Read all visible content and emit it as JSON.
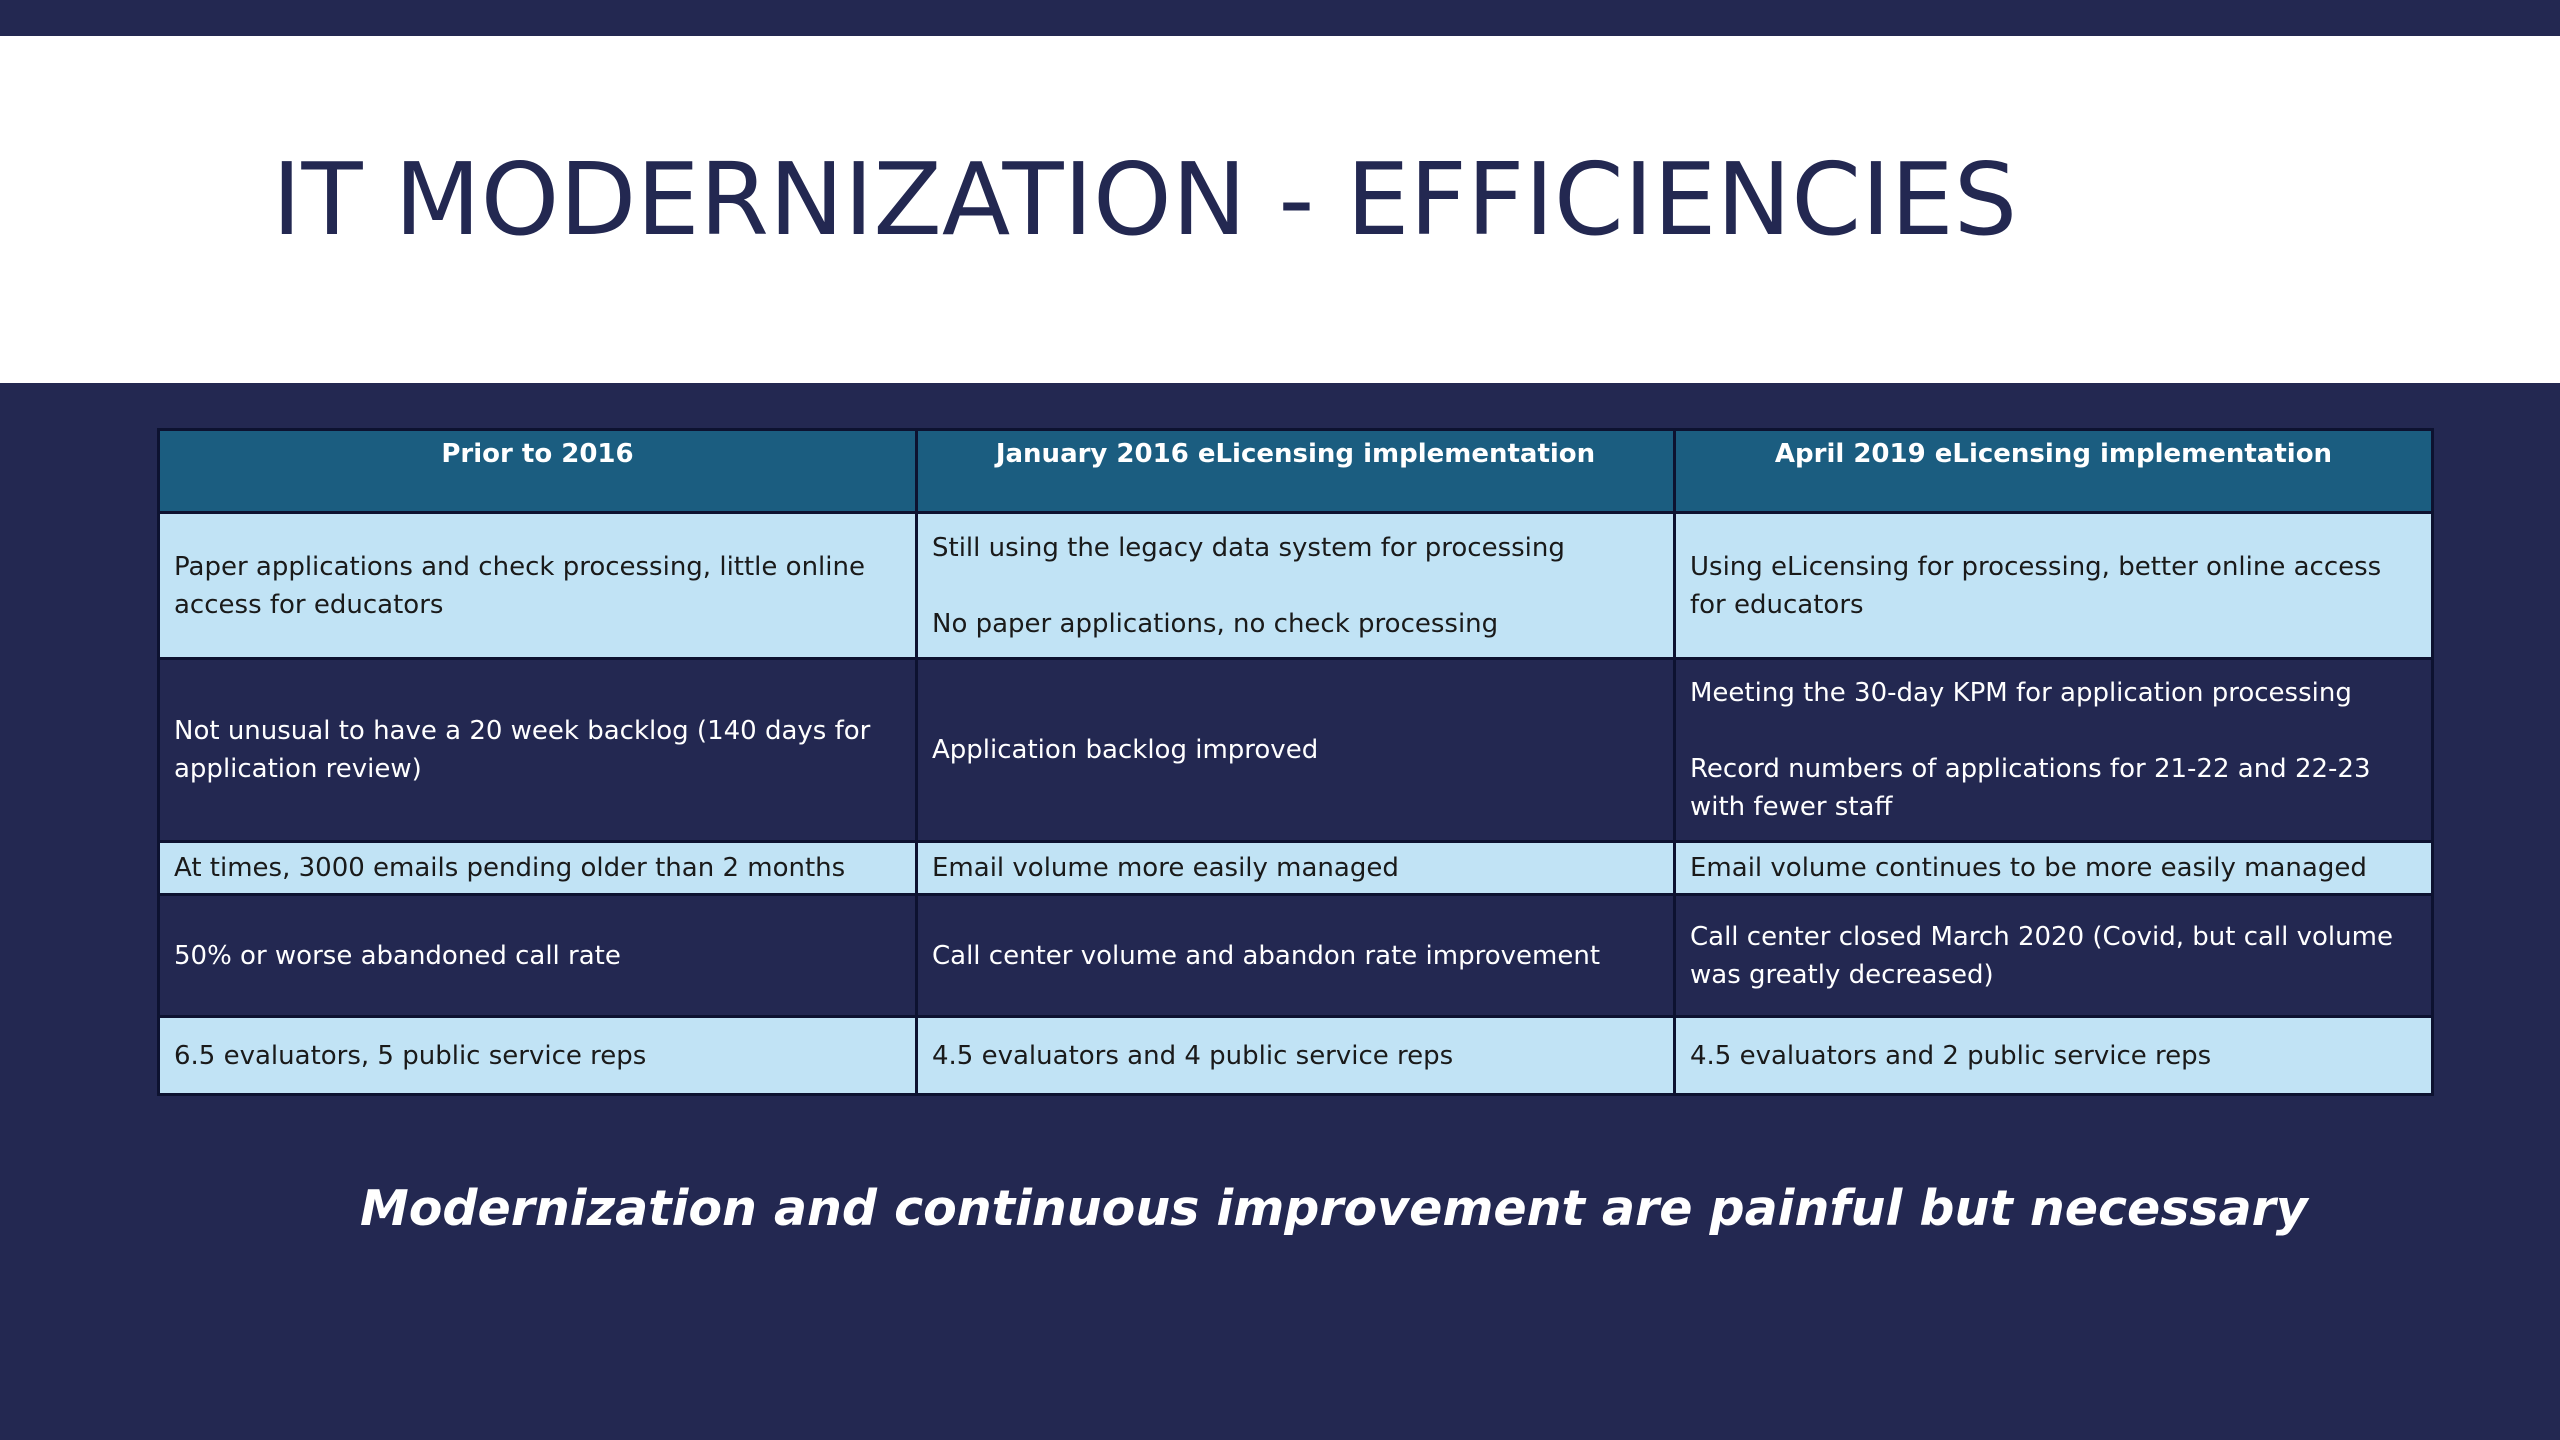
{
  "slide": {
    "title": "IT MODERNIZATION - EFFICIENCIES",
    "tagline": "Modernization and continuous improvement are painful but necessary"
  },
  "table": {
    "headers": [
      "Prior to 2016",
      "January 2016 eLicensing implementation",
      "April 2019 eLicensing implementation"
    ],
    "rows": [
      {
        "c0": "Paper applications and check processing, little online access for educators",
        "c1a": "Still using the legacy data system for processing",
        "c1b": "No paper applications, no check processing",
        "c2": "Using eLicensing for processing, better online access for educators"
      },
      {
        "c0": "Not unusual to have a 20 week backlog (140 days for application review)",
        "c1": "Application backlog improved",
        "c2a": "Meeting the 30-day KPM for application processing",
        "c2b": "Record numbers of applications for 21-22 and 22-23 with fewer staff"
      },
      {
        "c0": "At times, 3000 emails pending older than 2 months",
        "c1": "Email volume more easily managed",
        "c2": "Email volume continues to be more easily managed"
      },
      {
        "c0": "50% or worse abandoned call rate",
        "c1": "Call center volume and abandon rate improvement",
        "c2": "Call center closed March 2020 (Covid, but call volume was greatly decreased)"
      },
      {
        "c0": "6.5 evaluators, 5 public service reps",
        "c1": "4.5 evaluators and 4 public service reps",
        "c2": "4.5 evaluators and 2 public service reps"
      }
    ]
  },
  "colors": {
    "background": "#232851",
    "header_fill": "#1b5d80",
    "light_row_fill": "#c1e3f5",
    "title_color": "#232851"
  }
}
